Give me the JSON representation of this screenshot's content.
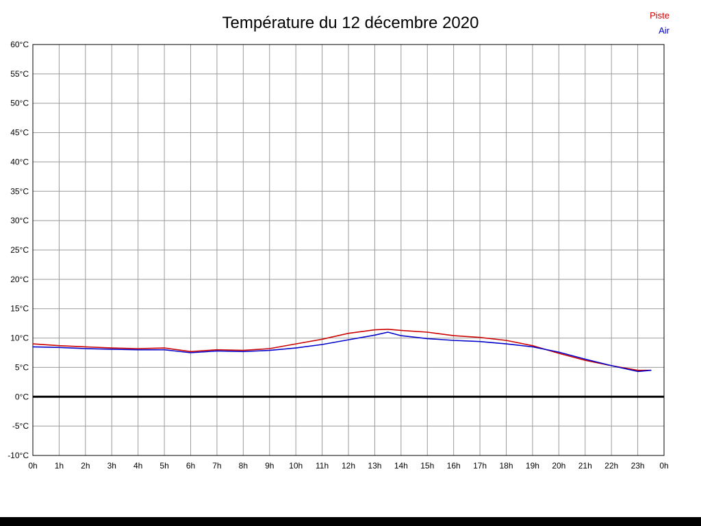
{
  "chart_data": {
    "type": "line",
    "title": "Température du 12 décembre 2020",
    "legend_position": "top-right",
    "grid": true,
    "grid_color": "#999999",
    "axis_color": "#000000",
    "zero_line": {
      "value": 0,
      "color": "#000000",
      "width": 3
    },
    "ylim": [
      -10,
      60
    ],
    "y_tick_step": 5,
    "y_ticks": [
      "60°C",
      "55°C",
      "50°C",
      "45°C",
      "40°C",
      "35°C",
      "30°C",
      "25°C",
      "20°C",
      "15°C",
      "10°C",
      "5°C",
      "0°C",
      "-5°C",
      "-10°C"
    ],
    "xlim": [
      0,
      24
    ],
    "x_ticks": [
      "0h",
      "1h",
      "2h",
      "3h",
      "4h",
      "5h",
      "6h",
      "7h",
      "8h",
      "9h",
      "10h",
      "11h",
      "12h",
      "13h",
      "14h",
      "15h",
      "16h",
      "17h",
      "18h",
      "19h",
      "20h",
      "21h",
      "22h",
      "23h",
      "0h"
    ],
    "x": [
      0,
      1,
      2,
      3,
      4,
      5,
      6,
      7,
      8,
      9,
      10,
      11,
      12,
      13,
      13.5,
      14,
      15,
      16,
      17,
      18,
      19,
      20,
      21,
      22,
      23,
      23.5
    ],
    "series": [
      {
        "name": "Piste",
        "color": "#cc0000",
        "values": [
          9.0,
          8.7,
          8.5,
          8.3,
          8.2,
          8.3,
          7.7,
          8.0,
          7.9,
          8.2,
          9.0,
          9.8,
          10.8,
          11.4,
          11.5,
          11.3,
          11.0,
          10.4,
          10.1,
          9.6,
          8.7,
          7.4,
          6.2,
          5.3,
          4.5,
          4.5
        ]
      },
      {
        "name": "Air",
        "color": "#0000cc",
        "values": [
          8.5,
          8.4,
          8.2,
          8.1,
          8.0,
          8.0,
          7.5,
          7.8,
          7.7,
          7.9,
          8.3,
          8.9,
          9.7,
          10.5,
          11.0,
          10.4,
          9.9,
          9.6,
          9.4,
          9.0,
          8.5,
          7.6,
          6.4,
          5.3,
          4.3,
          4.5
        ]
      }
    ]
  }
}
